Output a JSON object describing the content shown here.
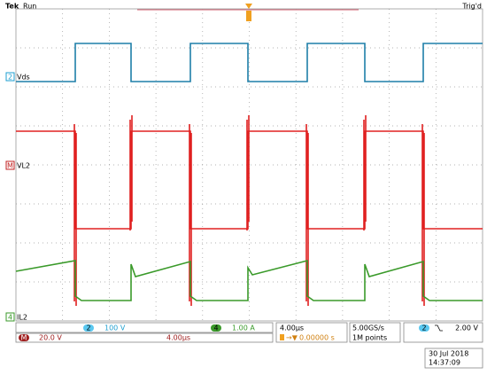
{
  "header": {
    "brand": "Tek",
    "status": "Run",
    "trigger_status": "Trig'd"
  },
  "channels": [
    {
      "number": "2",
      "label": "Vds"
    },
    {
      "number": "M",
      "label": "VL2"
    },
    {
      "number": "4",
      "label": "IL2"
    }
  ],
  "status_bar": {
    "ch2": {
      "number": "2",
      "scale": "100 V"
    },
    "ch4": {
      "number": "4",
      "scale": "1.00 A"
    },
    "math": {
      "number": "M",
      "scale": "20.0 V",
      "time": "4.00µs"
    },
    "timebase": {
      "scale": "4.00µs",
      "position": "0.00000 s"
    },
    "acquisition": {
      "rate": "5.00GS/s",
      "length": "1M points"
    },
    "trigger": {
      "source": "2",
      "level": "2.00 V"
    }
  },
  "timestamp": {
    "date": "30 Jul 2018",
    "time": "14:37:09"
  }
}
